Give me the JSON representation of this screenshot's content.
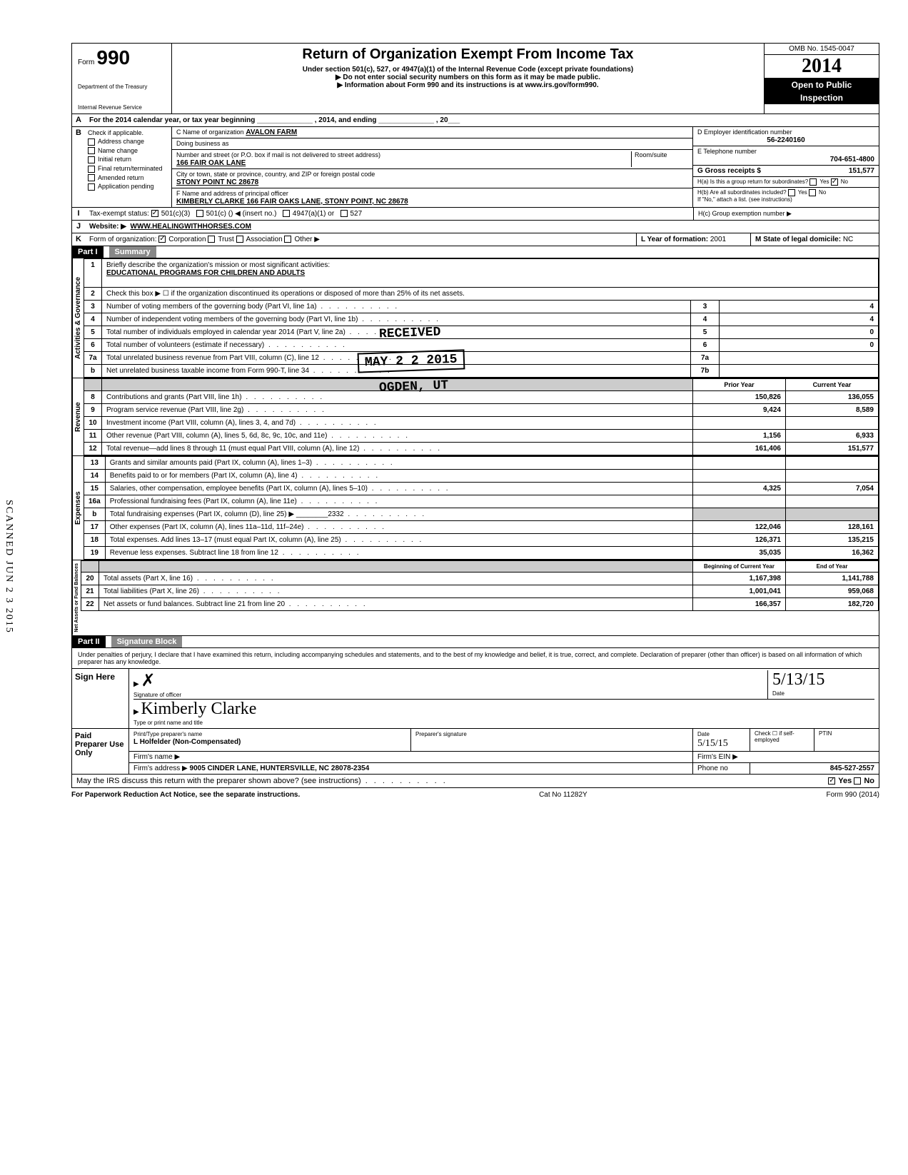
{
  "scanned_stamp": "SCANNED JUN 2 3 2015",
  "header": {
    "form_word": "Form",
    "form_number": "990",
    "dept1": "Department of the Treasury",
    "dept2": "Internal Revenue Service",
    "main_title": "Return of Organization Exempt From Income Tax",
    "subtitle": "Under section 501(c), 527, or 4947(a)(1) of the Internal Revenue Code (except private foundations)",
    "instr1": "▶ Do not enter social security numbers on this form as it may be made public.",
    "instr2": "▶ Information about Form 990 and its instructions is at www.irs.gov/form990.",
    "omb": "OMB No. 1545-0047",
    "year": "2014",
    "open1": "Open to Public",
    "open2": "Inspection"
  },
  "line_a": "For the 2014 calendar year, or tax year beginning ______________ , 2014, and ending ______________ , 20___",
  "checks": {
    "b": "Check if applicable.",
    "addr": "Address change",
    "name": "Name change",
    "init": "Initial return",
    "final": "Final return/terminated",
    "amend": "Amended return",
    "app": "Application pending"
  },
  "section_c": {
    "c_label": "C Name of organization",
    "org_name": "AVALON FARM",
    "dba": "Doing business as",
    "street_label": "Number and street (or P.O. box if mail is not delivered to street address)",
    "street": "166 FAIR OAK LANE",
    "room_label": "Room/suite",
    "city_label": "City or town, state or province, country, and ZIP or foreign postal code",
    "city": "STONY POINT NC 28678",
    "f_label": "F Name and address of principal officer",
    "officer": "KIMBERLY CLARKE 166 FAIR OAKS LANE, STONY POINT, NC 28678"
  },
  "section_d": {
    "d_label": "D Employer identification number",
    "ein": "56-2240160",
    "e_label": "E Telephone number",
    "phone": "704-651-4800",
    "g_label": "G Gross receipts $",
    "gross": "151,577",
    "ha": "H(a) Is this a group return for subordinates?",
    "hb": "H(b) Are all subordinates included?",
    "hb_note": "If \"No,\" attach a list. (see instructions)",
    "hc": "H(c) Group exemption number ▶",
    "yes": "Yes",
    "no": "No"
  },
  "line_i": {
    "label": "Tax-exempt status:",
    "c3": "501(c)(3)",
    "c": "501(c) (",
    "c_insert": ") ◀ (insert no.)",
    "a1": "4947(a)(1) or",
    "x527": "527"
  },
  "line_j": {
    "label": "Website: ▶",
    "value": "WWW.HEALINGWITHHORSES.COM"
  },
  "line_k": {
    "label": "Form of organization:",
    "corp": "Corporation",
    "trust": "Trust",
    "assoc": "Association",
    "other": "Other ▶",
    "l_label": "L Year of formation:",
    "l_value": "2001",
    "m_label": "M State of legal domicile:",
    "m_value": "NC"
  },
  "part1": {
    "label": "Part I",
    "title": "Summary"
  },
  "governance": {
    "label": "Activities & Governance",
    "l1": "Briefly describe the organization's mission or most significant activities:",
    "l1_val": "EDUCATIONAL PROGRAMS FOR CHILDREN AND ADULTS",
    "l2": "Check this box ▶ ☐ if the organization discontinued its operations or disposed of more than 25% of its net assets.",
    "l3": "Number of voting members of the governing body (Part VI, line 1a)",
    "l4": "Number of independent voting members of the governing body (Part VI, line 1b)",
    "l5": "Total number of individuals employed in calendar year 2014 (Part V, line 2a)",
    "l6": "Total number of volunteers (estimate if necessary)",
    "l7a": "Total unrelated business revenue from Part VIII, column (C), line 12",
    "l7b": "Net unrelated business taxable income from Form 990-T, line 34",
    "v3": "4",
    "v4": "4",
    "v5": "0",
    "v6": "0"
  },
  "revenue": {
    "label": "Revenue",
    "prior": "Prior Year",
    "current": "Current Year",
    "rows": [
      {
        "n": "8",
        "d": "Contributions and grants (Part VIII, line 1h)",
        "p": "150,826",
        "c": "136,055"
      },
      {
        "n": "9",
        "d": "Program service revenue (Part VIII, line 2g)",
        "p": "9,424",
        "c": "8,589"
      },
      {
        "n": "10",
        "d": "Investment income (Part VIII, column (A), lines 3, 4, and 7d)",
        "p": "",
        "c": ""
      },
      {
        "n": "11",
        "d": "Other revenue (Part VIII, column (A), lines 5, 6d, 8c, 9c, 10c, and 11e)",
        "p": "1,156",
        "c": "6,933"
      },
      {
        "n": "12",
        "d": "Total revenue—add lines 8 through 11 (must equal Part VIII, column (A), line 12)",
        "p": "161,406",
        "c": "151,577"
      }
    ]
  },
  "expenses": {
    "label": "Expenses",
    "rows": [
      {
        "n": "13",
        "d": "Grants and similar amounts paid (Part IX, column (A), lines 1–3)",
        "p": "",
        "c": ""
      },
      {
        "n": "14",
        "d": "Benefits paid to or for members (Part IX, column (A), line 4)",
        "p": "",
        "c": ""
      },
      {
        "n": "15",
        "d": "Salaries, other compensation, employee benefits (Part IX, column (A), lines 5–10)",
        "p": "4,325",
        "c": "7,054"
      },
      {
        "n": "16a",
        "d": "Professional fundraising fees (Part IX, column (A), line 11e)",
        "p": "",
        "c": ""
      },
      {
        "n": "b",
        "d": "Total fundraising expenses (Part IX, column (D), line 25) ▶ ________2332",
        "p": "",
        "c": "",
        "shaded": true
      },
      {
        "n": "17",
        "d": "Other expenses (Part IX, column (A), lines 11a–11d, 11f–24e)",
        "p": "122,046",
        "c": "128,161"
      },
      {
        "n": "18",
        "d": "Total expenses. Add lines 13–17 (must equal Part IX, column (A), line 25)",
        "p": "126,371",
        "c": "135,215"
      },
      {
        "n": "19",
        "d": "Revenue less expenses. Subtract line 18 from line 12",
        "p": "35,035",
        "c": "16,362"
      }
    ]
  },
  "netassets": {
    "label": "Net Assets or Fund Balances",
    "begin": "Beginning of Current Year",
    "end": "End of Year",
    "rows": [
      {
        "n": "20",
        "d": "Total assets (Part X, line 16)",
        "p": "1,167,398",
        "c": "1,141,788"
      },
      {
        "n": "21",
        "d": "Total liabilities (Part X, line 26)",
        "p": "1,001,041",
        "c": "959,068"
      },
      {
        "n": "22",
        "d": "Net assets or fund balances. Subtract line 21 from line 20",
        "p": "166,357",
        "c": "182,720"
      }
    ]
  },
  "part2": {
    "label": "Part II",
    "title": "Signature Block",
    "declaration": "Under penalties of perjury, I declare that I have examined this return, including accompanying schedules and statements, and to the best of my knowledge and belief, it is true, correct, and complete. Declaration of preparer (other than officer) is based on all information of which preparer has any knowledge."
  },
  "sign": {
    "here": "Sign Here",
    "sig_label": "Signature of officer",
    "date_label": "Date",
    "date_val": "5/13/15",
    "type_label": "Type or print name and title",
    "typed_name": "Kimberly Clarke"
  },
  "preparer": {
    "label": "Paid Preparer Use Only",
    "print_label": "Print/Type preparer's name",
    "name": "L Holfelder (Non-Compensated)",
    "sig_label": "Preparer's signature",
    "date_label": "Date",
    "date_val": "5/15/15",
    "check_label": "Check ☐ if self-employed",
    "ptin_label": "PTIN",
    "firm_name_label": "Firm's name ▶",
    "firm_ein_label": "Firm's EIN ▶",
    "firm_addr_label": "Firm's address ▶",
    "firm_addr": "9005 CINDER LANE, HUNTERSVILLE, NC 28078-2354",
    "phone_label": "Phone no",
    "phone": "845-527-2557"
  },
  "bottom": {
    "irs_q": "May the IRS discuss this return with the preparer shown above? (see instructions)",
    "paperwork": "For Paperwork Reduction Act Notice, see the separate instructions.",
    "cat": "Cat No 11282Y",
    "form": "Form 990 (2014)"
  },
  "stamps": {
    "received": "RECEIVED",
    "date": "MAY 2 2 2015",
    "ogden": "OGDEN, UT"
  }
}
